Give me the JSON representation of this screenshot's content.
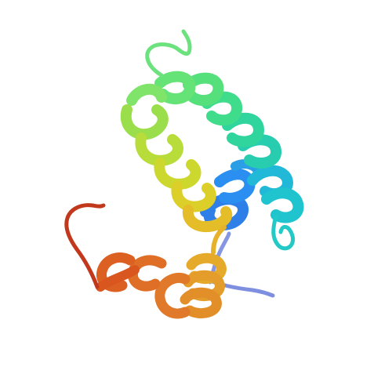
{
  "scene": {
    "subject": "protein-ribbon-model",
    "background_color": "#ffffff",
    "coloring": "rainbow-n-to-c",
    "palette": {
      "n_terminus": "#7f8fe0",
      "blue": "#2f7fe8",
      "cyan": "#22c3cf",
      "teal": "#2bd3a6",
      "green": "#6fe37a",
      "yellow_green": "#b9dc3c",
      "yellow": "#dcd52a",
      "orange_yellow": "#e7aa2a",
      "orange": "#e27a2a",
      "red_orange": "#d9561f",
      "c_terminus": "#c2381c"
    }
  }
}
